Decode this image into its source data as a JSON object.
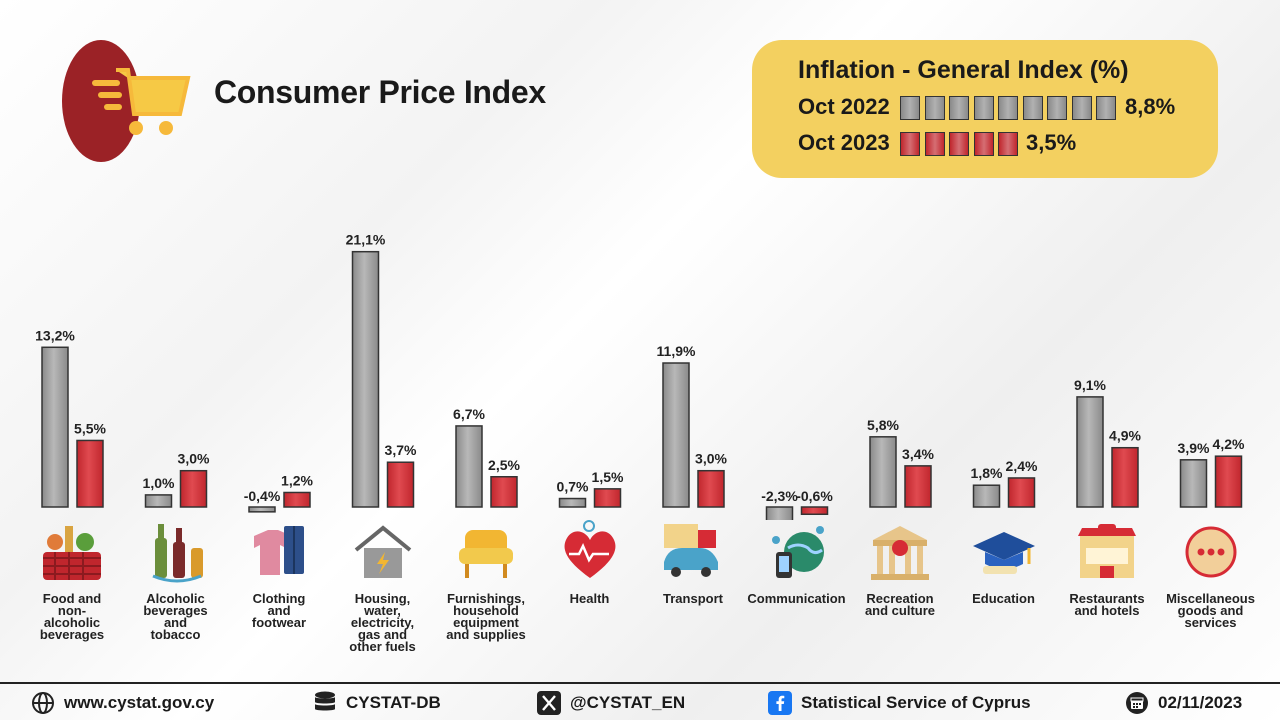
{
  "header": {
    "title": "Consumer Price Index"
  },
  "inflation": {
    "title": "Inflation - General Index (%)",
    "rows": [
      {
        "label": "Oct 2022",
        "value": "8,8%",
        "blocks": 9,
        "color": "#8a8a8a"
      },
      {
        "label": "Oct 2023",
        "value": "3,5%",
        "blocks": 5,
        "color": "#c0262d"
      }
    ]
  },
  "chart_data": {
    "type": "bar",
    "categories": [
      "Food and non-alcoholic beverages",
      "Alcoholic beverages and tobacco",
      "Clothing and footwear",
      "Housing, water, electricity, gas and other fuels",
      "Furnishings, household equipment and supplies",
      "Health",
      "Transport",
      "Communication",
      "Recreation and culture",
      "Education",
      "Restaurants and hotels",
      "Miscellaneous goods and services"
    ],
    "series": [
      {
        "name": "Oct 2022",
        "values": [
          13.2,
          1.0,
          -0.4,
          21.1,
          6.7,
          0.7,
          11.9,
          -2.3,
          5.8,
          1.8,
          9.1,
          3.9
        ],
        "labels": [
          "13,2%",
          "1,0%",
          "-0,4%",
          "21,1%",
          "6,7%",
          "0,7%",
          "11,9%",
          "-2,3%",
          "5,8%",
          "1,8%",
          "9,1%",
          "3,9%"
        ],
        "color": "#8a8a8a"
      },
      {
        "name": "Oct 2023",
        "values": [
          5.5,
          3.0,
          1.2,
          3.7,
          2.5,
          1.5,
          3.0,
          -0.6,
          3.4,
          2.4,
          4.9,
          4.2
        ],
        "labels": [
          "5,5%",
          "3,0%",
          "1,2%",
          "3,7%",
          "2,5%",
          "1,5%",
          "3,0%",
          "-0,6%",
          "3,4%",
          "2,4%",
          "4,9%",
          "4,2%"
        ],
        "color": "#c0262d"
      }
    ]
  },
  "category_labels": [
    "Food and\nnon-\nalcoholic\nbeverages",
    "Alcoholic\nbeverages\nand\ntobacco",
    "Clothing\nand\nfootwear",
    "Housing,\nwater,\nelectricity,\ngas and\nother fuels",
    "Furnishings,\nhousehold\nequipment\nand supplies",
    "Health",
    "Transport",
    "Communication",
    "Recreation\nand culture",
    "Education",
    "Restaurants\nand hotels",
    "Miscellaneous\ngoods and\nservices"
  ],
  "icons": [
    "basket-icon",
    "bottles-icon",
    "clothing-icon",
    "house-icon",
    "armchair-icon",
    "heart-icon",
    "vehicles-icon",
    "globe-phone-icon",
    "theatre-icon",
    "graduation-cap-icon",
    "restaurant-icon",
    "dots-icon"
  ],
  "footer": {
    "website": "www.cystat.gov.cy",
    "database": "CYSTAT-DB",
    "twitter": "@CYSTAT_EN",
    "facebook": "Statistical Service of Cyprus",
    "date": "02/11/2023"
  },
  "colors": {
    "gray": "#8a8a8a",
    "red": "#c0262d",
    "accent": "#f3d060",
    "brand": "#9b2226"
  }
}
